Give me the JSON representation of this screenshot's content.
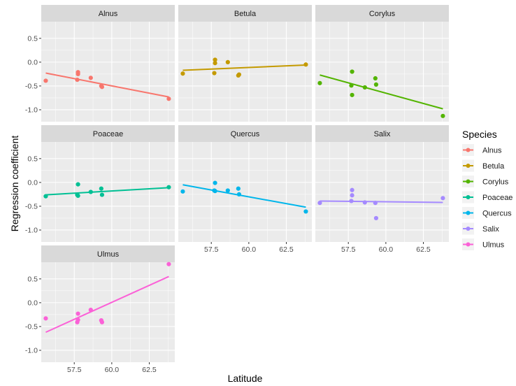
{
  "chart_data": {
    "type": "scatter",
    "facet": "wrap",
    "ncol": 3,
    "xlabel": "Latitude",
    "ylabel": "Regression coefficient",
    "xlim": [
      55.3,
      64.2
    ],
    "ylim": [
      -1.25,
      0.85
    ],
    "xticks": [
      57.5,
      60.0,
      62.5
    ],
    "xtick_labels": [
      "57.5",
      "60.0",
      "62.5"
    ],
    "yticks": [
      0.5,
      0.0,
      -0.5,
      -1.0
    ],
    "ytick_labels": [
      "0.5",
      "0.0",
      "-0.5",
      "-1.0"
    ],
    "grid": true,
    "legend": {
      "title": "Species",
      "placement": "right"
    },
    "series": [
      {
        "name": "Alnus",
        "color": "#F8766D",
        "points": [
          {
            "x": 55.6,
            "y": -0.39
          },
          {
            "x": 57.7,
            "y": -0.37
          },
          {
            "x": 57.75,
            "y": -0.21
          },
          {
            "x": 57.75,
            "y": -0.25
          },
          {
            "x": 58.6,
            "y": -0.33
          },
          {
            "x": 59.3,
            "y": -0.5
          },
          {
            "x": 59.35,
            "y": -0.52
          },
          {
            "x": 63.8,
            "y": -0.77
          }
        ],
        "fit": [
          {
            "x": 55.6,
            "y": -0.23
          },
          {
            "x": 63.8,
            "y": -0.73
          }
        ]
      },
      {
        "name": "Betula",
        "color": "#C49A00",
        "points": [
          {
            "x": 55.6,
            "y": -0.24
          },
          {
            "x": 57.7,
            "y": -0.23
          },
          {
            "x": 57.75,
            "y": 0.05
          },
          {
            "x": 57.75,
            "y": -0.02
          },
          {
            "x": 58.6,
            "y": 0.0
          },
          {
            "x": 59.3,
            "y": -0.28
          },
          {
            "x": 59.35,
            "y": -0.26
          },
          {
            "x": 63.8,
            "y": -0.05
          }
        ],
        "fit": [
          {
            "x": 55.6,
            "y": -0.17
          },
          {
            "x": 63.8,
            "y": -0.06
          }
        ]
      },
      {
        "name": "Corylus",
        "color": "#53B400",
        "points": [
          {
            "x": 55.6,
            "y": -0.44
          },
          {
            "x": 57.7,
            "y": -0.49
          },
          {
            "x": 57.75,
            "y": -0.2
          },
          {
            "x": 57.75,
            "y": -0.69
          },
          {
            "x": 58.6,
            "y": -0.53
          },
          {
            "x": 59.3,
            "y": -0.34
          },
          {
            "x": 59.35,
            "y": -0.47
          },
          {
            "x": 63.8,
            "y": -1.13
          }
        ],
        "fit": [
          {
            "x": 55.6,
            "y": -0.27
          },
          {
            "x": 63.8,
            "y": -0.98
          }
        ]
      },
      {
        "name": "Poaceae",
        "color": "#00C094",
        "points": [
          {
            "x": 55.6,
            "y": -0.29
          },
          {
            "x": 57.7,
            "y": -0.26
          },
          {
            "x": 57.75,
            "y": -0.04
          },
          {
            "x": 57.75,
            "y": -0.28
          },
          {
            "x": 58.6,
            "y": -0.2
          },
          {
            "x": 59.3,
            "y": -0.13
          },
          {
            "x": 59.35,
            "y": -0.26
          },
          {
            "x": 63.8,
            "y": -0.1
          }
        ],
        "fit": [
          {
            "x": 55.6,
            "y": -0.26
          },
          {
            "x": 63.8,
            "y": -0.11
          }
        ]
      },
      {
        "name": "Quercus",
        "color": "#00B6EB",
        "points": [
          {
            "x": 55.6,
            "y": -0.19
          },
          {
            "x": 57.7,
            "y": -0.17
          },
          {
            "x": 57.75,
            "y": -0.01
          },
          {
            "x": 57.75,
            "y": -0.18
          },
          {
            "x": 58.6,
            "y": -0.17
          },
          {
            "x": 59.3,
            "y": -0.13
          },
          {
            "x": 59.35,
            "y": -0.25
          },
          {
            "x": 63.8,
            "y": -0.61
          }
        ],
        "fit": [
          {
            "x": 55.6,
            "y": -0.05
          },
          {
            "x": 63.8,
            "y": -0.52
          }
        ]
      },
      {
        "name": "Salix",
        "color": "#A58AFF",
        "points": [
          {
            "x": 55.6,
            "y": -0.43
          },
          {
            "x": 57.7,
            "y": -0.39
          },
          {
            "x": 57.75,
            "y": -0.16
          },
          {
            "x": 57.75,
            "y": -0.27
          },
          {
            "x": 58.6,
            "y": -0.42
          },
          {
            "x": 59.3,
            "y": -0.43
          },
          {
            "x": 59.35,
            "y": -0.75
          },
          {
            "x": 63.8,
            "y": -0.33
          }
        ],
        "fit": [
          {
            "x": 55.6,
            "y": -0.39
          },
          {
            "x": 63.8,
            "y": -0.42
          }
        ]
      },
      {
        "name": "Ulmus",
        "color": "#FB61D7",
        "points": [
          {
            "x": 55.6,
            "y": -0.33
          },
          {
            "x": 57.7,
            "y": -0.41
          },
          {
            "x": 57.75,
            "y": -0.23
          },
          {
            "x": 57.75,
            "y": -0.36
          },
          {
            "x": 58.6,
            "y": -0.15
          },
          {
            "x": 59.3,
            "y": -0.37
          },
          {
            "x": 59.35,
            "y": -0.41
          },
          {
            "x": 63.8,
            "y": 0.81
          }
        ],
        "fit": [
          {
            "x": 55.6,
            "y": -0.62
          },
          {
            "x": 63.8,
            "y": 0.55
          }
        ]
      }
    ]
  }
}
